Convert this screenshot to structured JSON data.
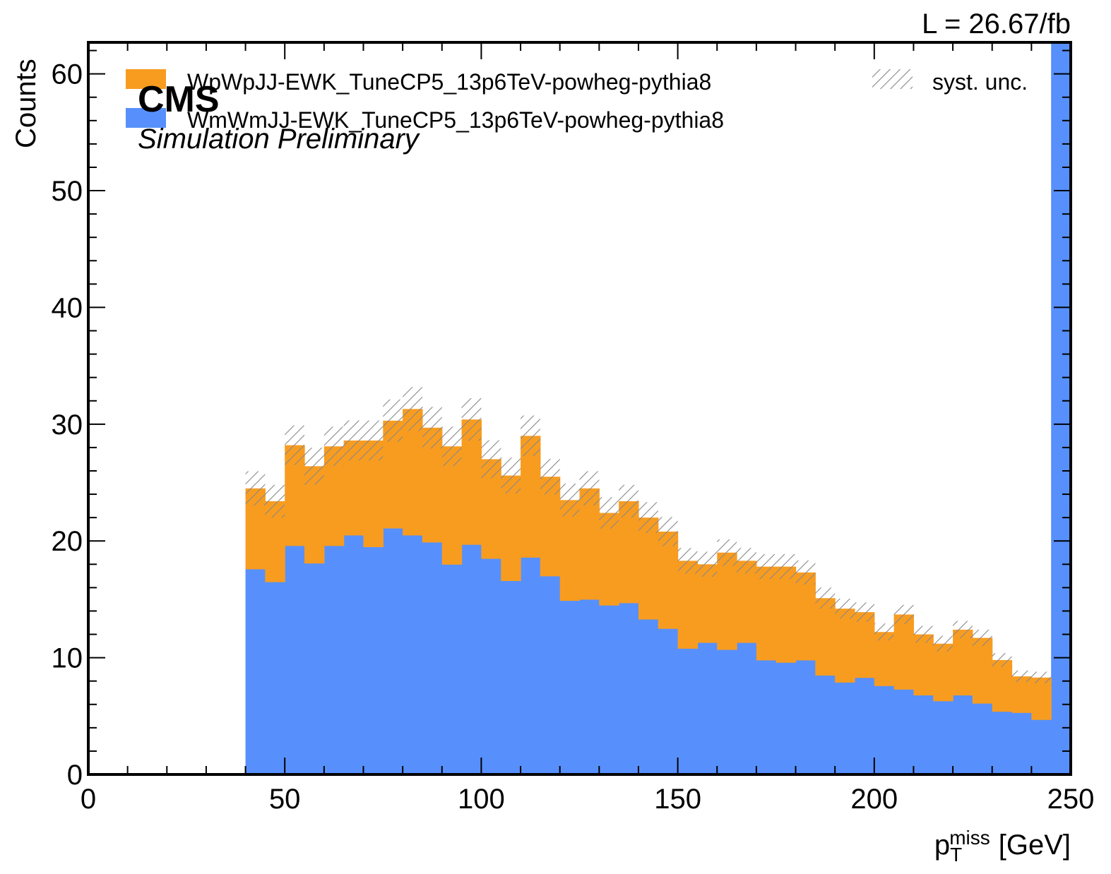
{
  "chart_data": {
    "type": "bar",
    "stacked": true,
    "histogram": true,
    "experiment_label": "CMS",
    "experiment_sublabel": "Simulation Preliminary",
    "luminosity": "L = 26.67/fb",
    "xlabel": "p",
    "xlabel_sub": "T",
    "xlabel_sup": "miss",
    "xlabel_unit": "[GeV]",
    "ylabel": "Counts",
    "xlim": [
      0,
      250
    ],
    "ylim": [
      0,
      62.7
    ],
    "xticks": [
      0,
      50,
      100,
      150,
      200,
      250
    ],
    "yticks": [
      0,
      10,
      20,
      30,
      40,
      50,
      60
    ],
    "legend_placement": "top",
    "grid": false,
    "bin_edges": [
      40,
      45,
      50,
      55,
      60,
      65,
      70,
      75,
      80,
      85,
      90,
      95,
      100,
      105,
      110,
      115,
      120,
      125,
      130,
      135,
      140,
      145,
      150,
      155,
      160,
      165,
      170,
      175,
      180,
      185,
      190,
      195,
      200,
      205,
      210,
      215,
      220,
      225,
      230,
      235,
      240,
      245,
      250
    ],
    "series": [
      {
        "name": "WmWmJJ-EWK_TuneCP5_13p6TeV-powheg-pythia8",
        "color": "#5790fc",
        "values": [
          17.6,
          16.5,
          19.6,
          18.1,
          19.6,
          20.5,
          19.5,
          21.1,
          20.5,
          19.9,
          18.0,
          19.7,
          18.5,
          16.6,
          18.6,
          17.0,
          14.9,
          15.0,
          14.5,
          14.7,
          13.3,
          12.5,
          10.8,
          11.3,
          10.7,
          11.3,
          9.8,
          9.6,
          9.8,
          8.5,
          7.9,
          8.3,
          7.6,
          7.3,
          6.8,
          6.3,
          6.8,
          6.1,
          5.4,
          5.3,
          4.7,
          62.7
        ]
      },
      {
        "name": "WpWpJJ-EWK_TuneCP5_13p6TeV-powheg-pythia8",
        "color": "#f89c20",
        "values": [
          6.9,
          6.9,
          8.6,
          8.3,
          8.5,
          8.1,
          9.1,
          9.2,
          10.8,
          9.8,
          10.1,
          10.7,
          8.5,
          9.0,
          10.4,
          8.5,
          8.6,
          9.5,
          7.9,
          8.7,
          8.7,
          8.3,
          7.5,
          6.7,
          8.3,
          7.0,
          8.0,
          8.2,
          7.5,
          6.6,
          6.3,
          5.6,
          4.6,
          6.4,
          5.2,
          4.9,
          5.6,
          5.6,
          4.4,
          3.1,
          3.6,
          0.0
        ]
      }
    ],
    "syst_unc": {
      "name": "syst. unc.",
      "hatch_color": "#888888",
      "fraction": 0.06
    }
  }
}
